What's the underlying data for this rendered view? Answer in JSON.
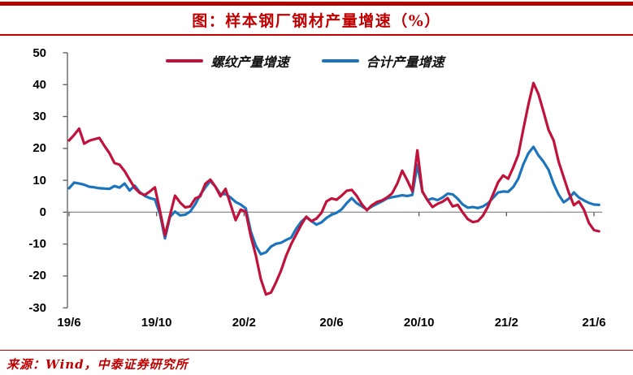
{
  "title": "图：样本钢厂钢材产量增速（%）",
  "source": "来源：Wind，中泰证券研究所",
  "colors": {
    "accent_red": "#C00000",
    "top_bar": "#B00000",
    "series_rebar": "#C0123A",
    "series_total": "#1C75BC",
    "zero_line": "#8A8A8A",
    "axis": "#595959"
  },
  "legend": {
    "items": [
      {
        "label": "螺纹产量增速",
        "color": "#C0123A"
      },
      {
        "label": "合计产量增速",
        "color": "#1C75BC"
      }
    ]
  },
  "chart_data": {
    "type": "line",
    "title": "图：样本钢厂钢材产量增速（%）",
    "xlabel": "",
    "ylabel": "",
    "ylim": [
      -30,
      50
    ],
    "yticks": [
      50,
      40,
      30,
      20,
      10,
      0,
      -10,
      -20,
      -30
    ],
    "y_tick_labels": [
      "50",
      "40",
      "30",
      "20",
      "10",
      "0",
      "-10",
      "-20",
      "-30"
    ],
    "x_tick_labels": [
      "19/6",
      "19/10",
      "20/2",
      "20/6",
      "20/10",
      "21/2",
      "21/6"
    ],
    "x_resolution": "weekly",
    "grid": "zero-line-only",
    "legend_position": "top-center",
    "series": [
      {
        "name": "螺纹产量增速",
        "color": "#C0123A",
        "values": [
          22.5,
          24.2,
          26.2,
          21.5,
          22.4,
          22.9,
          23.3,
          20.8,
          18.5,
          15.4,
          14.9,
          12.9,
          10.2,
          7.6,
          6.0,
          5.4,
          6.5,
          7.8,
          0.5,
          -7.3,
          -1.0,
          5.2,
          3.0,
          1.5,
          1.8,
          4.3,
          5.0,
          8.9,
          10.2,
          8.0,
          5.0,
          7.3,
          2.4,
          -2.5,
          0.8,
          0.2,
          -7.5,
          -13.5,
          -21.0,
          -25.8,
          -25.2,
          -22.0,
          -18.3,
          -13.7,
          -10.0,
          -7.0,
          -4.0,
          -1.4,
          -2.8,
          -2.0,
          -0.2,
          3.4,
          4.3,
          3.9,
          5.2,
          6.7,
          7.0,
          5.1,
          2.5,
          0.6,
          2.2,
          3.2,
          3.7,
          4.6,
          5.9,
          8.9,
          13.0,
          10.0,
          6.6,
          19.4,
          6.5,
          3.8,
          1.6,
          2.6,
          3.3,
          4.4,
          1.8,
          2.3,
          -0.1,
          -2.2,
          -3.1,
          -2.8,
          -1.1,
          1.8,
          5.6,
          9.4,
          11.5,
          10.5,
          14.0,
          18.0,
          26.0,
          33.8,
          40.5,
          37.0,
          31.5,
          25.8,
          22.5,
          15.8,
          11.0,
          6.2,
          2.2,
          3.4,
          0.8,
          -3.4,
          -5.6,
          -6.0
        ]
      },
      {
        "name": "合计产量增速",
        "color": "#1C75BC",
        "values": [
          7.5,
          9.3,
          9.0,
          8.6,
          8.0,
          7.8,
          7.5,
          7.4,
          7.3,
          8.2,
          7.7,
          9.0,
          6.8,
          8.3,
          6.3,
          5.1,
          4.4,
          4.0,
          -0.5,
          -8.2,
          -1.5,
          0.2,
          -1.0,
          -0.8,
          0.2,
          2.5,
          5.5,
          7.8,
          9.8,
          8.0,
          5.6,
          5.7,
          4.6,
          3.2,
          2.4,
          1.2,
          -6.0,
          -10.5,
          -13.2,
          -12.6,
          -10.8,
          -9.9,
          -9.6,
          -8.7,
          -8.0,
          -5.2,
          -3.0,
          -1.6,
          -2.8,
          -3.9,
          -3.2,
          -1.8,
          -0.8,
          -0.2,
          0.9,
          2.8,
          4.4,
          2.8,
          1.8,
          0.8,
          1.8,
          2.6,
          3.4,
          4.3,
          4.7,
          5.0,
          5.3,
          5.1,
          5.4,
          14.9,
          6.5,
          3.8,
          4.3,
          3.8,
          4.6,
          5.8,
          5.6,
          4.2,
          2.4,
          1.4,
          1.6,
          1.3,
          1.8,
          2.8,
          4.5,
          6.2,
          6.5,
          6.4,
          7.9,
          10.5,
          15.0,
          18.5,
          20.5,
          17.8,
          15.8,
          13.3,
          8.9,
          5.5,
          3.1,
          4.2,
          6.2,
          4.6,
          3.7,
          2.9,
          2.4,
          2.3
        ]
      }
    ]
  }
}
